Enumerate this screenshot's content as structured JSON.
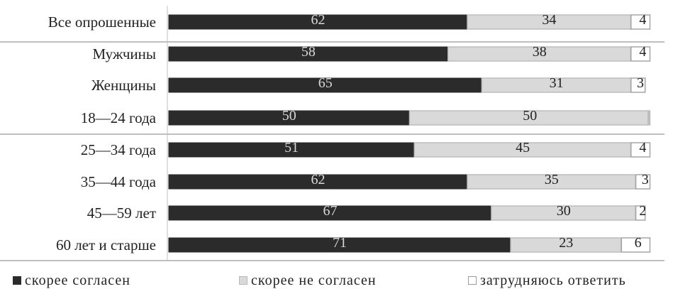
{
  "chart_data": {
    "type": "bar",
    "orientation": "horizontal",
    "stacked": true,
    "percent": true,
    "categories": [
      "Все опрошенные",
      "Мужчины",
      "Женщины",
      "18—24 года",
      "25—34 года",
      "35—44 года",
      "45—59 лет",
      "60 лет и старше"
    ],
    "series": [
      {
        "name": "скорее согласен",
        "values": [
          62,
          58,
          65,
          50,
          51,
          62,
          67,
          71
        ],
        "color": "#2b2b2b"
      },
      {
        "name": "скорее не согласен",
        "values": [
          34,
          38,
          31,
          50,
          45,
          35,
          30,
          23
        ],
        "color": "#d9d9d9"
      },
      {
        "name": "затрудняюсь ответить",
        "values": [
          4,
          4,
          3,
          null,
          4,
          3,
          2,
          6
        ],
        "color": "#ffffff"
      }
    ],
    "xlim": [
      0,
      100
    ],
    "legend_position": "bottom"
  }
}
